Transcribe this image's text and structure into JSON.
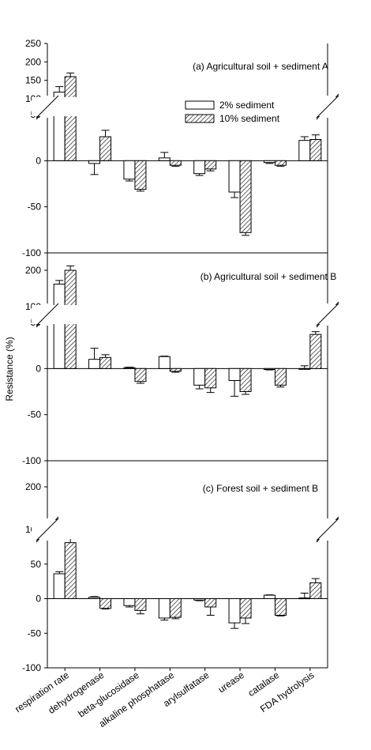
{
  "chart_data": {
    "type": "bar",
    "ylabel": "Resistance (%)",
    "categories": [
      "respiration rate",
      "dehydrogenase",
      "beta-glucosidase",
      "alkaline phosphatase",
      "arylsulfatase",
      "urease",
      "catalase",
      "FDA hydrolysis"
    ],
    "legend": {
      "placement": "upper-center of panel (a)",
      "entries": [
        {
          "name": "2% sediment",
          "fill": "#ffffff"
        },
        {
          "name": "10% sediment",
          "fill": "hatched"
        }
      ]
    },
    "panels": [
      {
        "title": "(a) Agricultural soil + sediment A",
        "broken_axis": true,
        "lower_ticks": [
          "-100",
          "-50",
          "0",
          "50"
        ],
        "upper_ticks": [
          "100",
          "150",
          "200",
          "250"
        ],
        "lower_range": [
          -100,
          50
        ],
        "upper_range": [
          100,
          250
        ],
        "series": [
          {
            "name": "2% sediment",
            "values": [
              118,
              -3,
              -20,
              3,
              -14,
              -34,
              -2,
              22
            ],
            "errors": [
              15,
              12,
              2,
              6,
              2,
              6,
              1,
              4
            ]
          },
          {
            "name": "10% sediment",
            "values": [
              160,
              26,
              -31,
              -5,
              -9,
              -78,
              -5,
              23
            ],
            "errors": [
              10,
              7,
              2,
              1,
              2,
              3,
              1,
              5
            ]
          }
        ]
      },
      {
        "title": "(b) Agricultural soil + sediment B",
        "broken_axis": true,
        "lower_ticks": [
          "-100",
          "-50",
          "0",
          "50"
        ],
        "upper_ticks": [
          "100",
          "200"
        ],
        "lower_range": [
          -100,
          50
        ],
        "upper_range": [
          100,
          250
        ],
        "series": [
          {
            "name": "2% sediment",
            "values": [
              162,
              10,
              1,
              13,
              -18,
              -13,
              -1,
              0
            ],
            "errors": [
              10,
              12,
              0.5,
              0.5,
              4,
              17,
              0.5,
              3
            ]
          },
          {
            "name": "10% sediment",
            "values": [
              200,
              12,
              -14,
              -3,
              -21,
              -25,
              -18,
              37
            ],
            "errors": [
              12,
              3,
              2,
              1,
              5,
              3,
              2,
              3
            ]
          }
        ]
      },
      {
        "title": "(c) Forest soil + sediment B",
        "broken_axis": true,
        "lower_ticks": [
          "-100",
          "-50",
          "0",
          "50",
          "100"
        ],
        "upper_ticks": [
          "200"
        ],
        "lower_range": [
          -100,
          100
        ],
        "upper_range": [
          150,
          250
        ],
        "series": [
          {
            "name": "2% sediment",
            "values": [
              36,
              2,
              -10,
              -28,
              -2,
              -35,
              5,
              1
            ],
            "errors": [
              3,
              1,
              2,
              3,
              1,
              8,
              0.5,
              7
            ]
          },
          {
            "name": "10% sediment",
            "values": [
              81,
              -14,
              -17,
              -27,
              -12,
              -28,
              -24,
              23
            ],
            "errors": [
              7,
              1,
              5,
              2,
              12,
              8,
              1,
              6
            ]
          }
        ]
      }
    ]
  }
}
